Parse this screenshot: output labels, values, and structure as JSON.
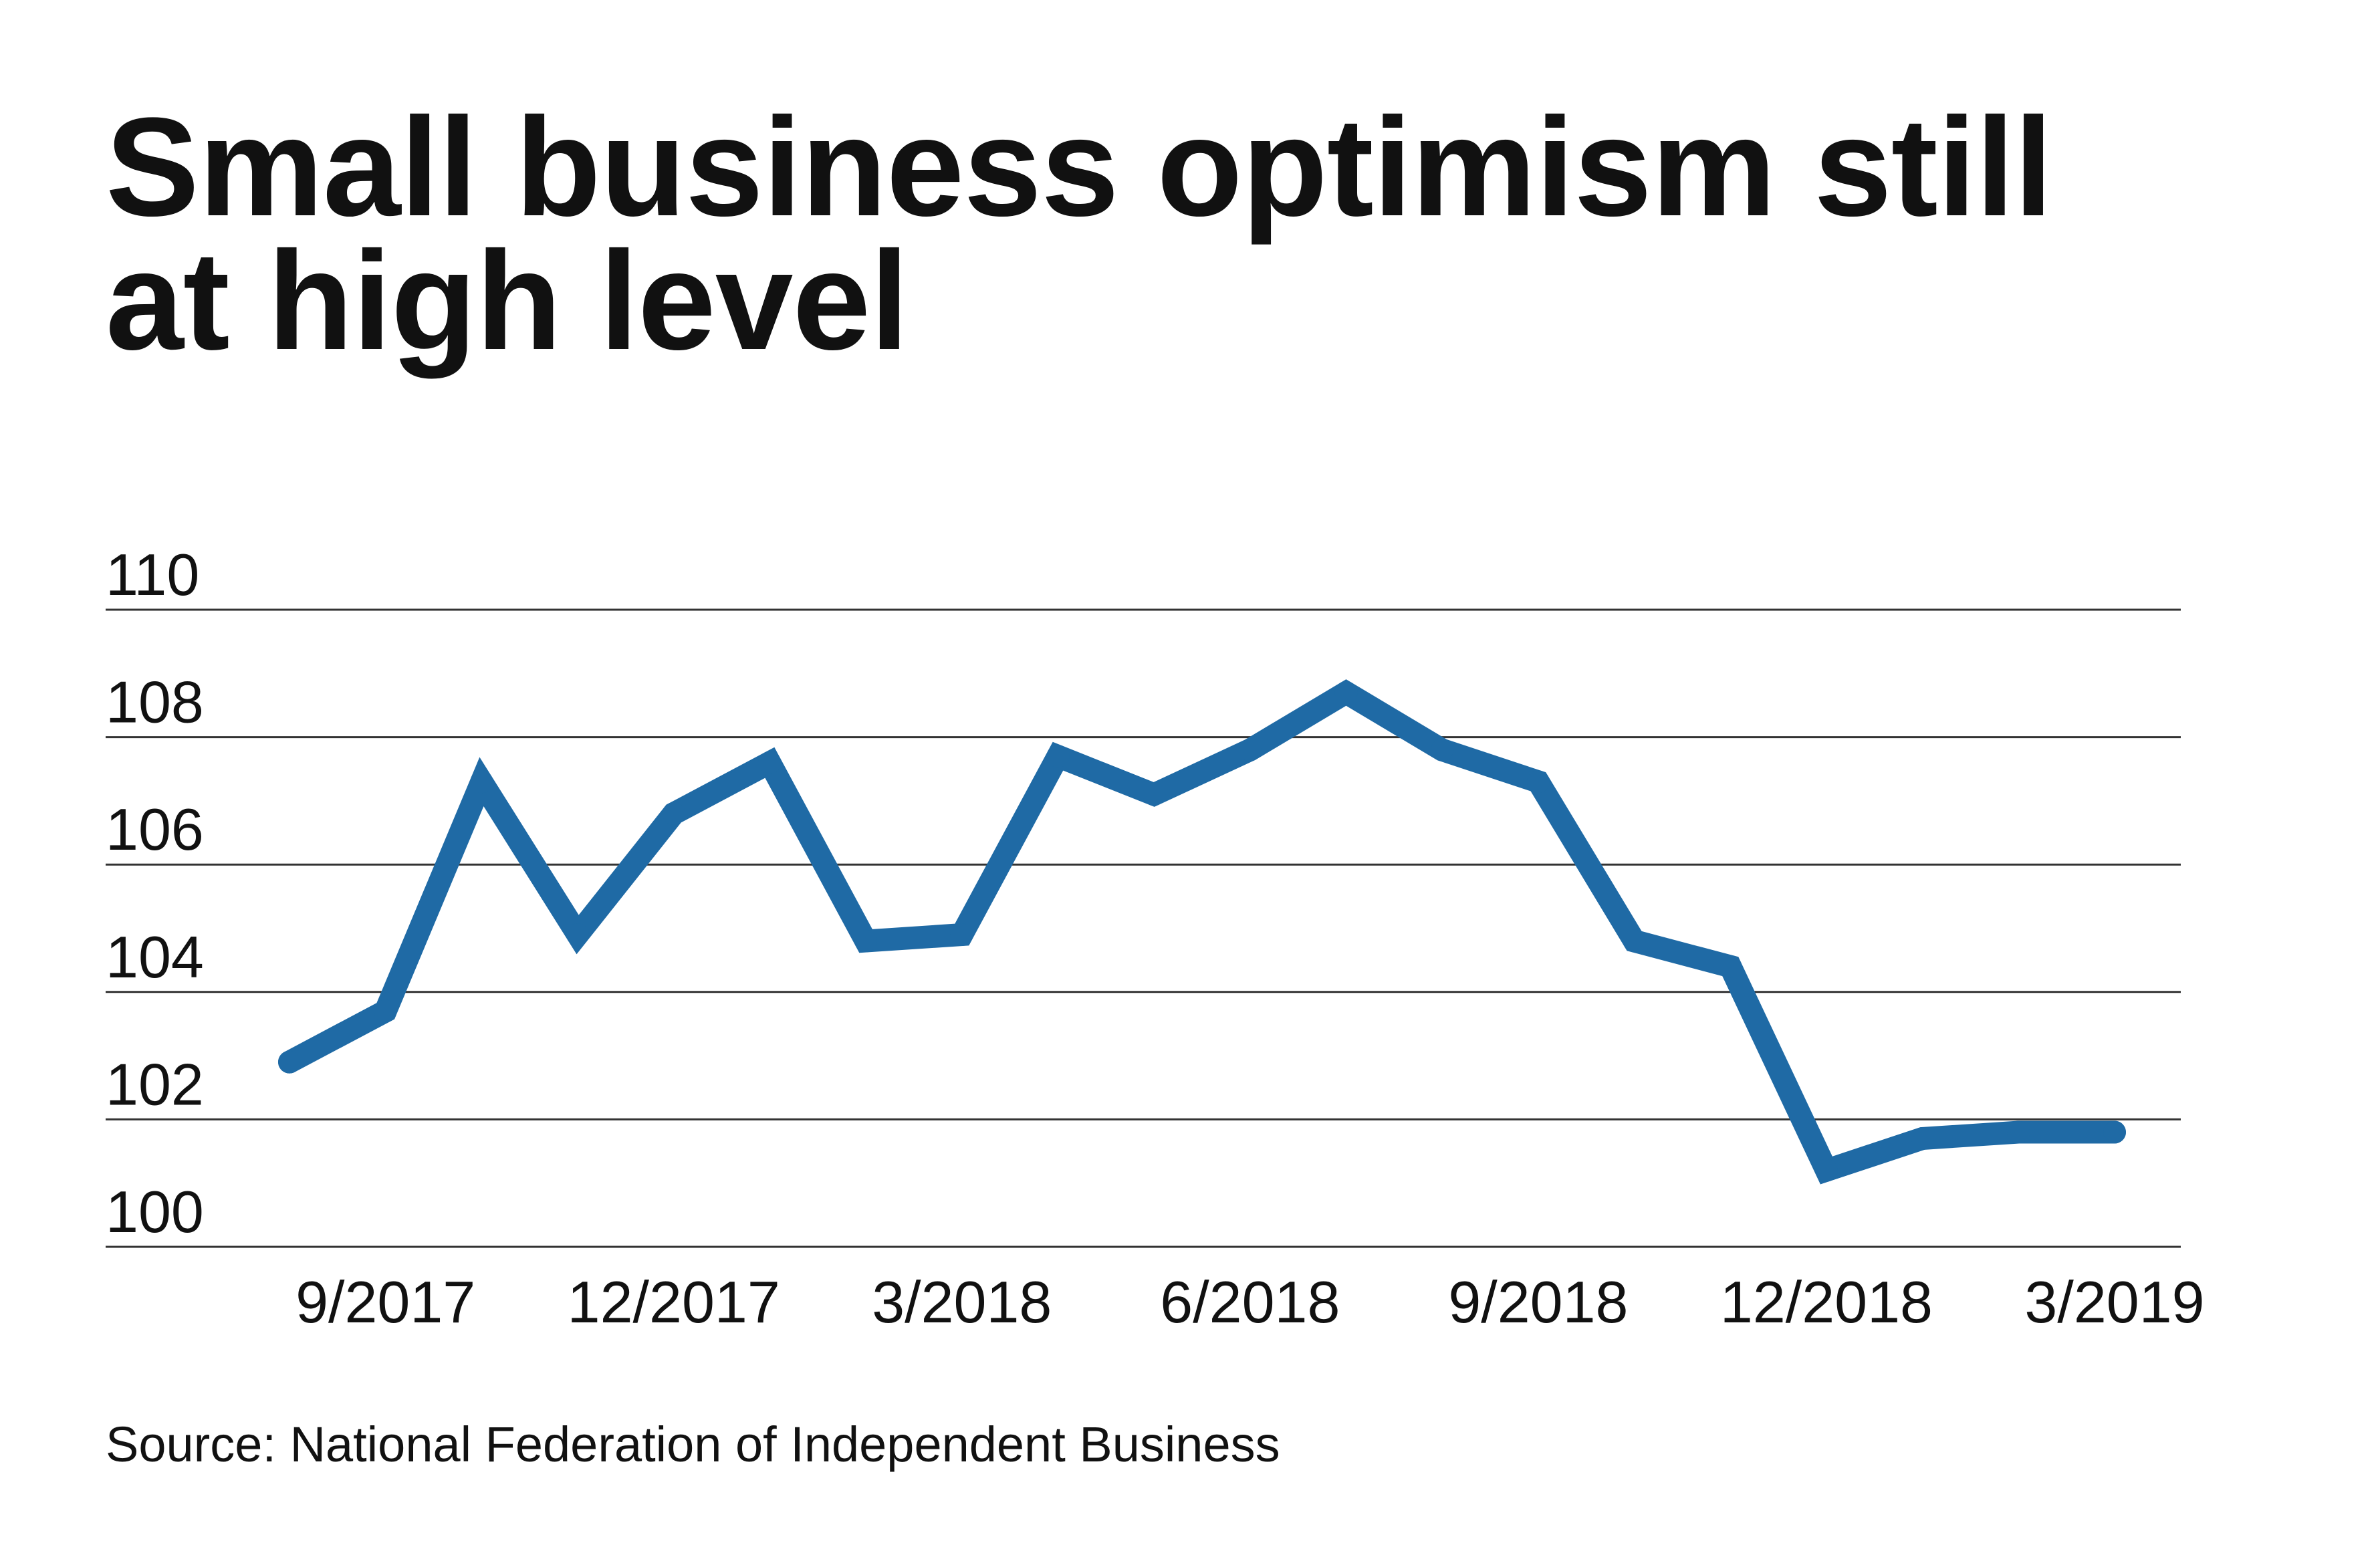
{
  "title": "Small business optimism still at high level",
  "source": "Source: National Federation of Independent Business",
  "colors": {
    "line": "#1f6aa5",
    "grid": "#333333",
    "text": "#111111"
  },
  "chart_data": {
    "type": "line",
    "title": "Small business optimism still at high level",
    "xlabel": "",
    "ylabel": "",
    "ylim": [
      100,
      110
    ],
    "yticks": [
      100,
      102,
      104,
      106,
      108,
      110
    ],
    "grid": true,
    "x_tick_labels": [
      "9/2017",
      "12/2017",
      "3/2018",
      "6/2018",
      "9/2018",
      "12/2018",
      "3/2019"
    ],
    "x": [
      "8/2017",
      "9/2017",
      "10/2017",
      "11/2017",
      "12/2017",
      "1/2018",
      "2/2018",
      "3/2018",
      "4/2018",
      "5/2018",
      "6/2018",
      "7/2018",
      "8/2018",
      "9/2018",
      "10/2018",
      "11/2018",
      "12/2018",
      "1/2019",
      "2/2019",
      "3/2019"
    ],
    "series": [
      {
        "values": [
          102.9,
          103.7,
          107.3,
          104.9,
          106.8,
          107.6,
          104.8,
          104.9,
          107.7,
          107.1,
          107.8,
          108.7,
          107.8,
          107.3,
          104.8,
          104.4,
          101.2,
          101.7,
          101.8,
          101.8
        ]
      }
    ]
  }
}
